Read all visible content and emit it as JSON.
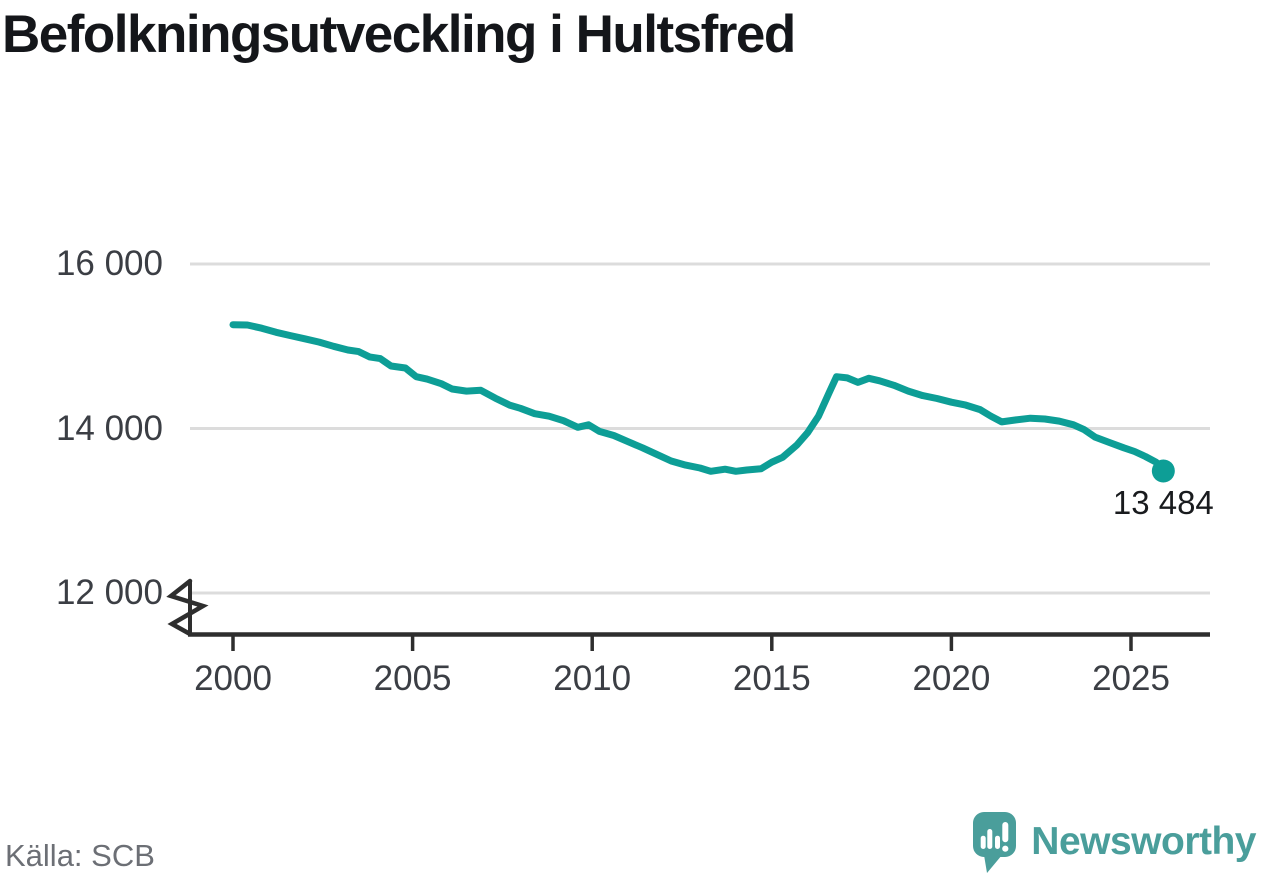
{
  "title": "Befolkningsutveckling i Hultsfred",
  "source": "Källa: SCB",
  "branding": {
    "name": "Newsworthy",
    "icon": "newsworthy-speech-bubble-bar-chart-icon"
  },
  "colors": {
    "line": "#0d9e96",
    "grid": "#dcdcdc",
    "axis": "#2e2e2e",
    "brand_teal": "#4a9e9b",
    "title_text": "#14161a",
    "tick_text": "#3b3e44",
    "source_text": "#6c6f75",
    "end_label_text": "#191b1e"
  },
  "chart_data": {
    "type": "line",
    "title": "Befolkningsutveckling i Hultsfred",
    "grid": "horizontal",
    "legend": "none",
    "axis_break_marker": true,
    "xlim": [
      1998.8,
      2027.2
    ],
    "ylim_display": [
      12000,
      16000
    ],
    "x_ticks": {
      "values": [
        2000,
        2005,
        2010,
        2015,
        2020,
        2025
      ],
      "labels": [
        "2000",
        "2005",
        "2010",
        "2015",
        "2020",
        "2025"
      ]
    },
    "y_ticks": {
      "values": [
        16000,
        14000,
        12000
      ],
      "labels": [
        "16 000",
        "14 000",
        "12 000"
      ]
    },
    "end_label": "13 484",
    "end_value": 13484,
    "x": [
      2000.0,
      2000.4,
      2000.8,
      2001.2,
      2001.6,
      2002.0,
      2002.4,
      2002.8,
      2003.2,
      2003.5,
      2003.8,
      2004.1,
      2004.4,
      2004.8,
      2005.1,
      2005.4,
      2005.8,
      2006.1,
      2006.5,
      2006.9,
      2007.3,
      2007.7,
      2008.0,
      2008.4,
      2008.8,
      2009.2,
      2009.6,
      2009.9,
      2010.2,
      2010.6,
      2011.0,
      2011.4,
      2011.8,
      2012.2,
      2012.6,
      2013.0,
      2013.3,
      2013.7,
      2014.0,
      2014.3,
      2014.7,
      2015.0,
      2015.3,
      2015.7,
      2016.0,
      2016.3,
      2016.6,
      2016.8,
      2017.1,
      2017.4,
      2017.7,
      2018.0,
      2018.4,
      2018.8,
      2019.2,
      2019.6,
      2020.0,
      2020.4,
      2020.8,
      2021.1,
      2021.4,
      2021.8,
      2022.2,
      2022.6,
      2023.0,
      2023.4,
      2023.7,
      2024.0,
      2024.4,
      2024.8,
      2025.1,
      2025.4,
      2025.7,
      2025.9
    ],
    "values": [
      15262,
      15258,
      15220,
      15170,
      15130,
      15090,
      15050,
      15000,
      14955,
      14935,
      14870,
      14850,
      14760,
      14735,
      14630,
      14600,
      14545,
      14480,
      14455,
      14465,
      14370,
      14285,
      14245,
      14180,
      14150,
      14095,
      14015,
      14045,
      13965,
      13915,
      13840,
      13765,
      13685,
      13605,
      13555,
      13520,
      13480,
      13505,
      13480,
      13495,
      13510,
      13590,
      13650,
      13800,
      13950,
      14150,
      14440,
      14630,
      14615,
      14560,
      14610,
      14580,
      14525,
      14455,
      14400,
      14365,
      14320,
      14285,
      14230,
      14150,
      14080,
      14105,
      14125,
      14115,
      14090,
      14045,
      13985,
      13895,
      13830,
      13765,
      13720,
      13660,
      13590,
      13484
    ]
  }
}
